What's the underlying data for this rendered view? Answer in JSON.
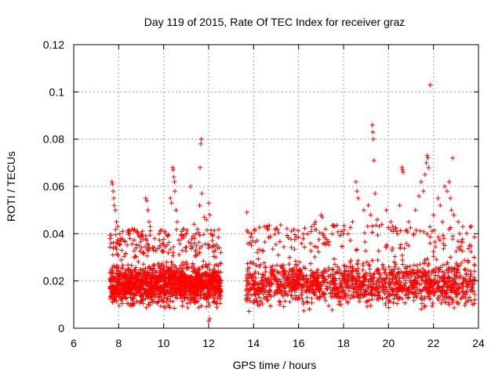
{
  "chart_data": {
    "type": "scatter",
    "title": "Day 119 of 2015, Rate Of TEC Index for receiver graz",
    "xlabel": "GPS time / hours",
    "ylabel": "ROTI / TECUs",
    "xlim": [
      6,
      24
    ],
    "ylim": [
      0,
      0.12
    ],
    "xticks": [
      6,
      8,
      10,
      12,
      14,
      16,
      18,
      20,
      22,
      24
    ],
    "yticks": [
      0,
      0.02,
      0.04,
      0.06,
      0.08,
      0.1,
      0.12
    ],
    "xtick_labels": [
      "6",
      "8",
      "10",
      "12",
      "14",
      "16",
      "18",
      "20",
      "22",
      "24"
    ],
    "ytick_labels": [
      "0",
      "0.02",
      "0.04",
      "0.06",
      "0.08",
      "0.1",
      "0.12"
    ],
    "grid": true,
    "marker": "+",
    "color": "#ff0000",
    "series": [
      {
        "name": "ROTI",
        "points": [
          [
            7.7,
            0.062
          ],
          [
            7.72,
            0.061
          ],
          [
            7.75,
            0.058
          ],
          [
            7.78,
            0.055
          ],
          [
            7.8,
            0.052
          ],
          [
            7.85,
            0.05
          ],
          [
            7.9,
            0.045
          ],
          [
            7.95,
            0.043
          ],
          [
            7.62,
            0.038
          ],
          [
            7.66,
            0.036
          ],
          [
            8.05,
            0.04
          ],
          [
            8.1,
            0.038
          ],
          [
            8.5,
            0.038
          ],
          [
            8.6,
            0.042
          ],
          [
            8.8,
            0.041
          ],
          [
            9.0,
            0.04
          ],
          [
            9.2,
            0.055
          ],
          [
            9.25,
            0.054
          ],
          [
            9.3,
            0.05
          ],
          [
            9.35,
            0.045
          ],
          [
            9.4,
            0.043
          ],
          [
            9.6,
            0.038
          ],
          [
            9.8,
            0.04
          ],
          [
            9.95,
            0.036
          ],
          [
            10.05,
            0.041
          ],
          [
            10.15,
            0.039
          ],
          [
            10.3,
            0.055
          ],
          [
            10.35,
            0.053
          ],
          [
            10.4,
            0.068
          ],
          [
            10.42,
            0.067
          ],
          [
            10.45,
            0.064
          ],
          [
            10.48,
            0.062
          ],
          [
            10.5,
            0.058
          ],
          [
            10.55,
            0.05
          ],
          [
            10.6,
            0.045
          ],
          [
            10.8,
            0.041
          ],
          [
            11.0,
            0.04
          ],
          [
            11.2,
            0.06
          ],
          [
            11.35,
            0.044
          ],
          [
            11.5,
            0.042
          ],
          [
            11.6,
            0.052
          ],
          [
            11.62,
            0.068
          ],
          [
            11.65,
            0.078
          ],
          [
            11.67,
            0.08
          ],
          [
            11.7,
            0.057
          ],
          [
            11.8,
            0.047
          ],
          [
            11.9,
            0.046
          ],
          [
            12.0,
            0.053
          ],
          [
            12.05,
            0.048
          ],
          [
            12.1,
            0.04
          ],
          [
            12.2,
            0.035
          ],
          [
            12.4,
            0.034
          ],
          [
            12.0,
            0.003
          ],
          [
            12.05,
            0.004
          ],
          [
            13.7,
            0.049
          ],
          [
            13.9,
            0.04
          ],
          [
            13.95,
            0.037
          ],
          [
            14.4,
            0.033
          ],
          [
            15.1,
            0.031
          ],
          [
            15.6,
            0.03
          ],
          [
            16.2,
            0.038
          ],
          [
            16.4,
            0.04
          ],
          [
            16.55,
            0.041
          ],
          [
            16.7,
            0.044
          ],
          [
            16.75,
            0.045
          ],
          [
            17.0,
            0.048
          ],
          [
            17.05,
            0.047
          ],
          [
            17.2,
            0.042
          ],
          [
            17.5,
            0.04
          ],
          [
            17.9,
            0.041
          ],
          [
            18.2,
            0.04
          ],
          [
            18.4,
            0.045
          ],
          [
            18.55,
            0.062
          ],
          [
            18.6,
            0.058
          ],
          [
            18.65,
            0.055
          ],
          [
            18.9,
            0.05
          ],
          [
            19.1,
            0.052
          ],
          [
            19.2,
            0.048
          ],
          [
            19.28,
            0.086
          ],
          [
            19.3,
            0.083
          ],
          [
            19.32,
            0.08
          ],
          [
            19.35,
            0.071
          ],
          [
            19.4,
            0.057
          ],
          [
            19.5,
            0.046
          ],
          [
            19.7,
            0.044
          ],
          [
            19.9,
            0.05
          ],
          [
            20.1,
            0.045
          ],
          [
            20.3,
            0.042
          ],
          [
            20.4,
            0.04
          ],
          [
            20.5,
            0.052
          ],
          [
            20.6,
            0.068
          ],
          [
            20.62,
            0.067
          ],
          [
            20.65,
            0.066
          ],
          [
            20.9,
            0.045
          ],
          [
            21.2,
            0.05
          ],
          [
            21.35,
            0.056
          ],
          [
            21.45,
            0.062
          ],
          [
            21.55,
            0.058
          ],
          [
            21.62,
            0.065
          ],
          [
            21.68,
            0.07
          ],
          [
            21.72,
            0.073
          ],
          [
            21.75,
            0.072
          ],
          [
            21.78,
            0.068
          ],
          [
            21.85,
            0.103
          ],
          [
            22.0,
            0.048
          ],
          [
            22.2,
            0.055
          ],
          [
            22.3,
            0.052
          ],
          [
            22.4,
            0.045
          ],
          [
            22.5,
            0.06
          ],
          [
            22.6,
            0.058
          ],
          [
            22.7,
            0.062
          ],
          [
            22.75,
            0.055
          ],
          [
            22.8,
            0.05
          ],
          [
            22.85,
            0.072
          ],
          [
            22.9,
            0.048
          ],
          [
            23.1,
            0.045
          ],
          [
            23.3,
            0.043
          ],
          [
            23.6,
            0.035
          ],
          [
            23.8,
            0.03
          ]
        ],
        "density_band": [
          {
            "x": [
              7.6,
              12.55
            ],
            "y_lo": 0.007,
            "y_hi": 0.03
          },
          {
            "x": [
              13.65,
              23.85
            ],
            "y_lo": 0.006,
            "y_hi": 0.032
          }
        ],
        "gap": [
          12.6,
          13.6
        ]
      }
    ]
  }
}
